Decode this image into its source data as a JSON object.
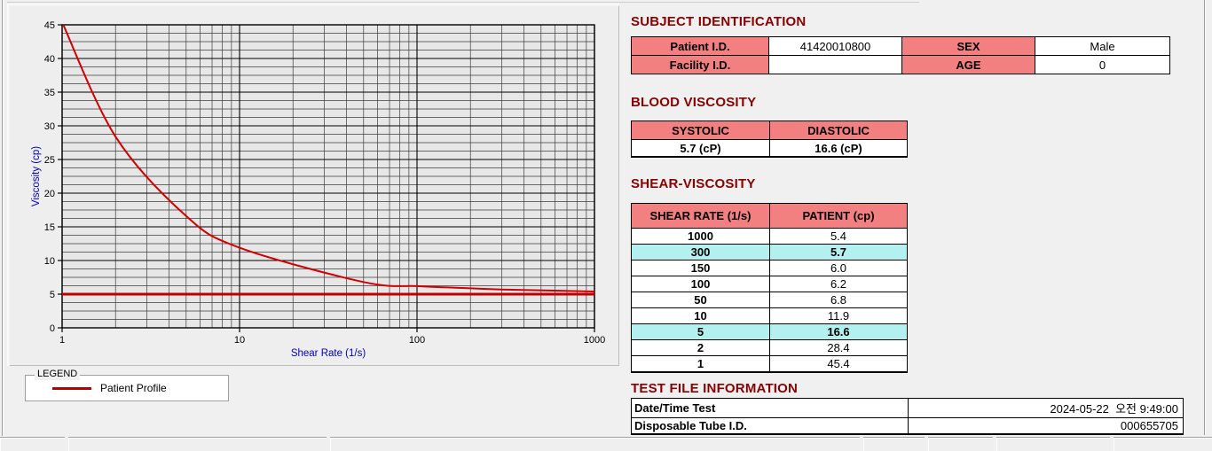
{
  "colors": {
    "page_bg": "#f0f0f0",
    "heading": "#8b0000",
    "table_header_bg": "#f28080",
    "highlight_bg": "#b3f0f0",
    "axis_label": "#0000c0",
    "curve": "#d40000",
    "baseline": "#c00000",
    "legend_line": "#b40000",
    "plot_bg": "#e7e7e7"
  },
  "chart_data": {
    "type": "line",
    "title": "",
    "xlabel": "Shear Rate (1/s)",
    "ylabel": "Viscosity (cp)",
    "x_scale": "log",
    "xlim": [
      1,
      1000
    ],
    "ylim": [
      0,
      45
    ],
    "x_ticks": [
      1,
      10,
      100,
      1000
    ],
    "y_ticks": [
      0,
      5,
      10,
      15,
      20,
      25,
      30,
      35,
      40,
      45
    ],
    "y_minor_step": 1.25,
    "grid": true,
    "legend_position": "below-left",
    "series": [
      {
        "name": "Patient Profile",
        "color": "#d40000",
        "width": 2,
        "smooth": true,
        "points": [
          [
            1,
            45.4
          ],
          [
            2,
            28.4
          ],
          [
            5,
            16.6
          ],
          [
            10,
            11.9
          ],
          [
            50,
            6.8
          ],
          [
            100,
            6.2
          ],
          [
            150,
            6.0
          ],
          [
            300,
            5.7
          ],
          [
            1000,
            5.4
          ]
        ]
      },
      {
        "name": "horizontal-reference-line",
        "color": "#c00000",
        "width": 3,
        "smooth": false,
        "points": [
          [
            1,
            5.0
          ],
          [
            1000,
            5.0
          ]
        ]
      }
    ]
  },
  "legend": {
    "title": "LEGEND",
    "items": [
      {
        "label": "Patient Profile",
        "color": "#b40000"
      }
    ]
  },
  "subject": {
    "title": "SUBJECT IDENTIFICATION",
    "patient_id_label": "Patient I.D.",
    "patient_id_value": "41420010800",
    "sex_label": "SEX",
    "sex_value": "Male",
    "facility_id_label": "Facility I.D.",
    "facility_id_value": "",
    "age_label": "AGE",
    "age_value": "0"
  },
  "blood": {
    "title": "BLOOD VISCOSITY",
    "systolic_label": "SYSTOLIC",
    "diastolic_label": "DIASTOLIC",
    "systolic_value": "5.7 (cP)",
    "diastolic_value": "16.6 (cP)"
  },
  "shear": {
    "title": "SHEAR-VISCOSITY",
    "col1": "SHEAR RATE (1/s)",
    "col2": "PATIENT (cp)",
    "rows": [
      {
        "rate": "1000",
        "patient": "5.4",
        "highlight": false
      },
      {
        "rate": "300",
        "patient": "5.7",
        "highlight": true
      },
      {
        "rate": "150",
        "patient": "6.0",
        "highlight": false
      },
      {
        "rate": "100",
        "patient": "6.2",
        "highlight": false
      },
      {
        "rate": "50",
        "patient": "6.8",
        "highlight": false
      },
      {
        "rate": "10",
        "patient": "11.9",
        "highlight": false
      },
      {
        "rate": "5",
        "patient": "16.6",
        "highlight": true
      },
      {
        "rate": "2",
        "patient": "28.4",
        "highlight": false
      },
      {
        "rate": "1",
        "patient": "45.4",
        "highlight": false
      }
    ]
  },
  "testfile": {
    "title": "TEST FILE INFORMATION",
    "rows": [
      {
        "label": "Date/Time Test",
        "value": "2024-05-22  오전 9:49:00"
      },
      {
        "label": "Disposable Tube I.D.",
        "value": "000655705"
      }
    ]
  }
}
